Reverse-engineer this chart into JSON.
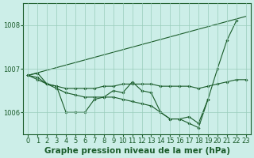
{
  "background_color": "#cceee8",
  "grid_color": "#99ccbb",
  "line_color": "#1a5c2a",
  "marker_color": "#1a5c2a",
  "title": "Graphe pression niveau de la mer (hPa)",
  "title_fontsize": 7.5,
  "tick_fontsize": 6.0,
  "xlim": [
    -0.5,
    23.5
  ],
  "ylim": [
    1005.5,
    1008.5
  ],
  "yticks": [
    1006,
    1007,
    1008
  ],
  "xticks": [
    0,
    1,
    2,
    3,
    4,
    5,
    6,
    7,
    8,
    9,
    10,
    11,
    12,
    13,
    14,
    15,
    16,
    17,
    18,
    19,
    20,
    21,
    22,
    23
  ],
  "series": [
    {
      "x": [
        0,
        1,
        2,
        3,
        4,
        5,
        6,
        7,
        8,
        9,
        10,
        11,
        12,
        13,
        14,
        15,
        16,
        17,
        18,
        19,
        20,
        21,
        22
      ],
      "y": [
        1006.85,
        1006.9,
        1006.65,
        1006.6,
        1006.0,
        1006.0,
        1006.0,
        1006.3,
        1006.35,
        1006.5,
        1006.45,
        1006.7,
        1006.5,
        1006.45,
        1006.0,
        1005.85,
        1005.85,
        1005.9,
        1005.75,
        1006.3,
        1007.0,
        1007.65,
        1008.1
      ],
      "has_markers": true
    },
    {
      "x": [
        0,
        23
      ],
      "y": [
        1006.85,
        1008.2
      ],
      "has_markers": false
    },
    {
      "x": [
        0,
        1,
        2,
        3,
        4,
        5,
        6,
        7,
        8,
        9,
        10,
        11,
        12,
        13,
        14,
        15,
        16,
        17,
        18,
        19,
        20,
        21,
        22,
        23
      ],
      "y": [
        1006.85,
        1006.75,
        1006.65,
        1006.6,
        1006.55,
        1006.55,
        1006.55,
        1006.55,
        1006.6,
        1006.6,
        1006.65,
        1006.65,
        1006.65,
        1006.65,
        1006.6,
        1006.6,
        1006.6,
        1006.6,
        1006.55,
        1006.6,
        1006.65,
        1006.7,
        1006.75,
        1006.75
      ],
      "has_markers": true
    },
    {
      "x": [
        0,
        1,
        2,
        3,
        4,
        5,
        6,
        7,
        8,
        9,
        10,
        11,
        12,
        13,
        14,
        15,
        16,
        17,
        18,
        19
      ],
      "y": [
        1006.85,
        1006.8,
        1006.65,
        1006.55,
        1006.45,
        1006.4,
        1006.35,
        1006.35,
        1006.35,
        1006.35,
        1006.3,
        1006.25,
        1006.2,
        1006.15,
        1006.0,
        1005.85,
        1005.85,
        1005.75,
        1005.65,
        1006.3
      ],
      "has_markers": true
    }
  ]
}
